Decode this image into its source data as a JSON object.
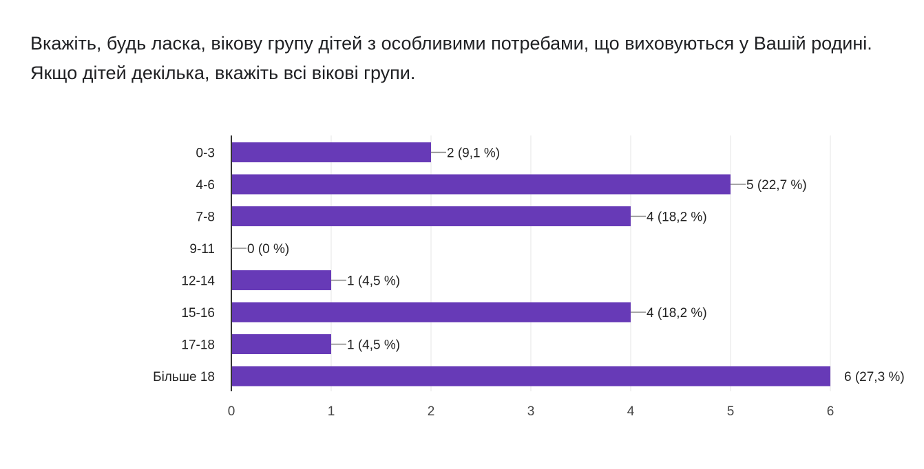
{
  "question": {
    "title": "Вкажіть, будь ласка, вікову групу дітей з особливими потребами, що виховуються у Вашій родині. Якщо дітей декілька, вкажіть всі вікові групи."
  },
  "colors": {
    "bar": "#673ab7",
    "grid": "#e6e6e6",
    "axis": "#333333",
    "leader": "#888888"
  },
  "chart_data": {
    "type": "bar",
    "orientation": "horizontal",
    "categories": [
      "0-3",
      "4-6",
      "7-8",
      "9-11",
      "12-14",
      "15-16",
      "17-18",
      "Більше 18"
    ],
    "values": [
      2,
      5,
      4,
      0,
      1,
      4,
      1,
      6
    ],
    "data_labels": [
      "2 (9,1 %)",
      "5 (22,7 %)",
      "4 (18,2 %)",
      "0 (0 %)",
      "1 (4,5 %)",
      "4 (18,2 %)",
      "1 (4,5 %)",
      "6 (27,3 %)"
    ],
    "x_ticks": [
      0,
      1,
      2,
      3,
      4,
      5,
      6
    ],
    "xlim": [
      0,
      6
    ],
    "grid": true,
    "legend": false,
    "title": "",
    "xlabel": "",
    "ylabel": ""
  }
}
